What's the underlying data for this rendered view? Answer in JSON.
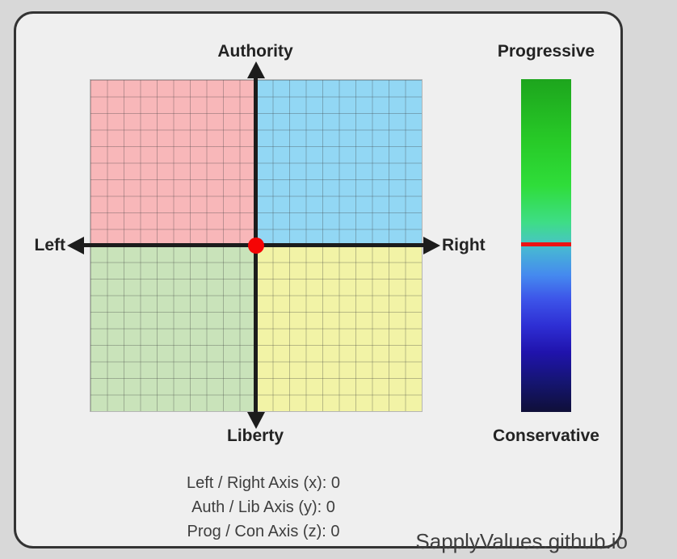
{
  "page": {
    "background": "#d8d8d8",
    "card_background": "#efefef",
    "card_border_color": "#333333"
  },
  "compass": {
    "axis_labels": {
      "top": "Authority",
      "bottom": "Liberty",
      "left": "Left",
      "right": "Right"
    },
    "quadrant_colors": {
      "auth_left": "#f8b7b9",
      "auth_right": "#92d7f4",
      "lib_left": "#c9e3ba",
      "lib_right": "#f2f3a6"
    },
    "grid_line_color": "rgba(60,60,60,0.32)",
    "grid_cells_per_axis": 20,
    "axis_color": "#1c1c1c",
    "dot_color": "#f50505"
  },
  "zbar": {
    "top_label": "Progressive",
    "bottom_label": "Conservative",
    "marker_color": "#ec1313",
    "gradient_stops": [
      "#1da51d 0%",
      "#27c927 18%",
      "#2fdd3a 32%",
      "#3edd86 43%",
      "#46c9ba 48.5%",
      "#47b4d6 51.5%",
      "#4589ef 59%",
      "#3d55e9 66%",
      "#2e2fd4 74%",
      "#2013ad 82%",
      "#151572 91%",
      "#0f0f38 100%"
    ]
  },
  "stats": {
    "lines": [
      "Left / Right Axis (x): 0",
      "Auth / Lib Axis (y): 0",
      "Prog / Con Axis (z): 0"
    ]
  },
  "footer": {
    "site": "SapplyValues.github.io"
  },
  "chart_data": {
    "type": "scatter",
    "title": "SapplyValues political compass result",
    "points": [
      {
        "x": 0,
        "y": 0,
        "z": 0
      }
    ],
    "x_axis": {
      "label_left": "Left",
      "label_right": "Right",
      "range": [
        -10,
        10
      ],
      "value": 0
    },
    "y_axis": {
      "label_top": "Authority",
      "label_bottom": "Liberty",
      "range": [
        -10,
        10
      ],
      "value": 0
    },
    "z_axis": {
      "label_top": "Progressive",
      "label_bottom": "Conservative",
      "range": [
        -10,
        10
      ],
      "value": 0
    },
    "grid": "on",
    "annotations": [
      "Left / Right Axis (x): 0",
      "Auth / Lib Axis (y): 0",
      "Prog / Con Axis (z): 0",
      "SapplyValues.github.io"
    ]
  }
}
